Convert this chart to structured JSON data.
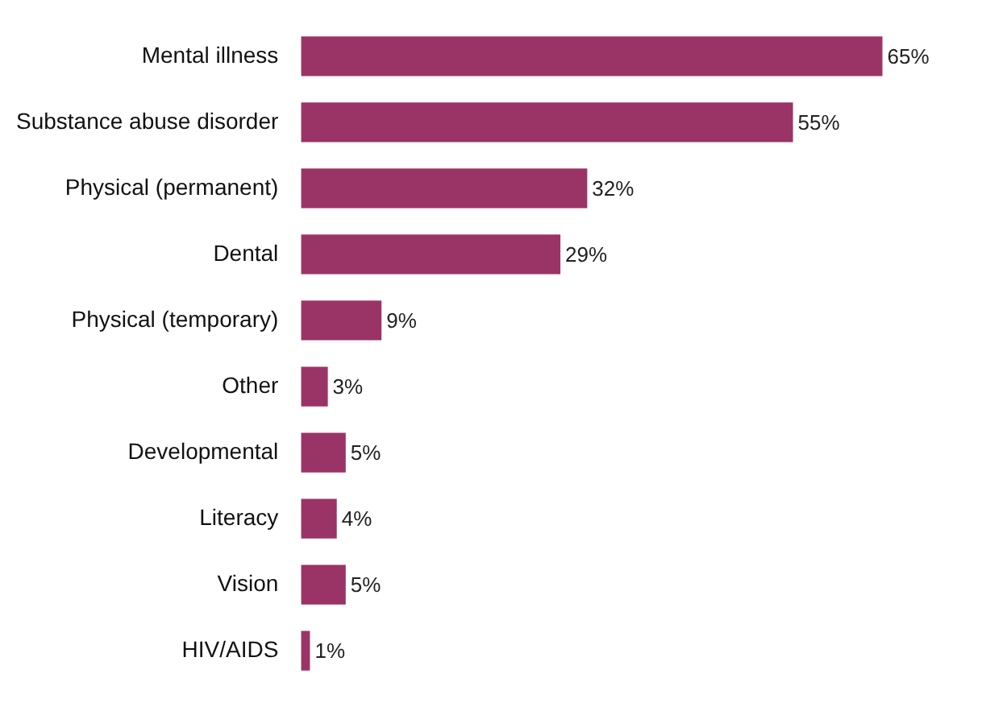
{
  "chart_data": {
    "type": "bar",
    "orientation": "horizontal",
    "categories": [
      "Mental illness",
      "Substance abuse disorder",
      "Physical (permanent)",
      "Dental",
      "Physical (temporary)",
      "Other",
      "Developmental",
      "Literacy",
      "Vision",
      "HIV/AIDS"
    ],
    "values": [
      65,
      55,
      32,
      29,
      9,
      3,
      5,
      4,
      5,
      1
    ],
    "value_labels": [
      "65%",
      "55%",
      "32%",
      "29%",
      "9%",
      "3%",
      "5%",
      "4%",
      "5%",
      "1%"
    ],
    "color": "#9b3466",
    "legend": false
  }
}
